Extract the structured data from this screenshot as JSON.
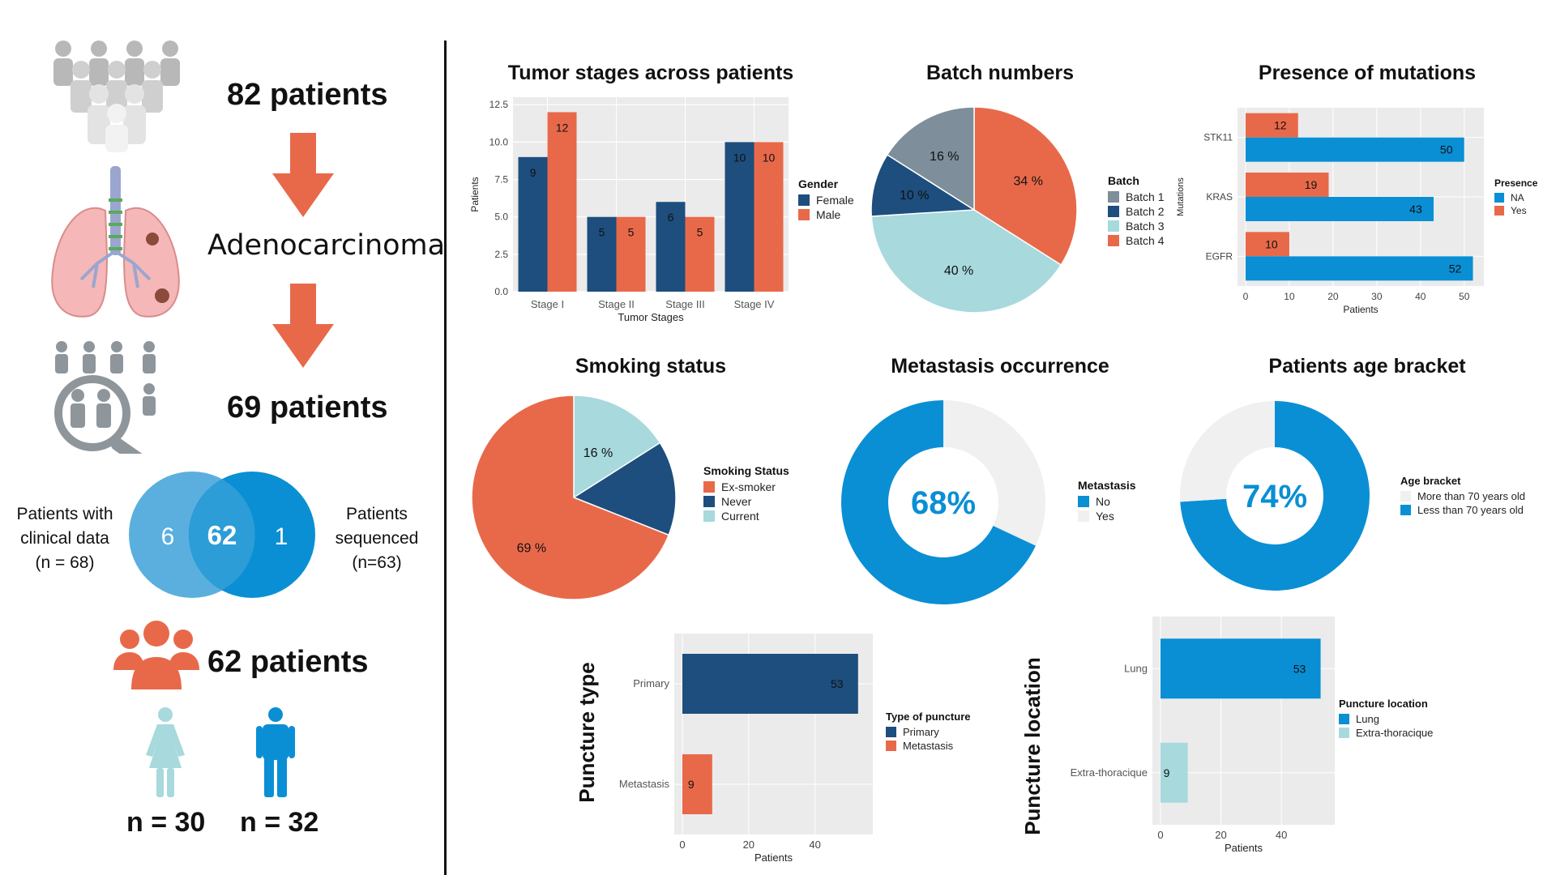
{
  "colors": {
    "orange": "#E8694A",
    "navy": "#1D4E7D",
    "blue": "#0A8FD4",
    "light_blue": "#A7D9DD",
    "grey_batch": "#7E8E9A",
    "panel": "#EBEBEB",
    "grid": "#FFFFFF",
    "yes_light": "#F0F0F0",
    "venn_left": "#5AAFDE",
    "venn_right": "#0A8FD4"
  },
  "left": {
    "n_start": "82 patients",
    "diagnosis": "Adenocarcinoma",
    "n_filtered": "69 patients",
    "venn": {
      "left_label_lines": [
        "Patients with",
        "clinical data",
        "(n = 68)"
      ],
      "right_label_lines": [
        "Patients",
        "sequenced",
        "(n=63)"
      ],
      "left_only": "6",
      "intersection": "62",
      "right_only": "1"
    },
    "n_final": "62 patients",
    "female_n": "n = 30",
    "male_n": "n = 32"
  },
  "chart_data": [
    {
      "id": "tumor-stages",
      "type": "bar",
      "title": "Tumor stages across patients",
      "xlabel": "Tumor Stages",
      "ylabel": "Patients",
      "categories": [
        "Stage I",
        "Stage II",
        "Stage III",
        "Stage IV"
      ],
      "series": [
        {
          "name": "Female",
          "values": [
            9,
            5,
            6,
            10
          ]
        },
        {
          "name": "Male",
          "values": [
            12,
            5,
            5,
            10
          ]
        }
      ],
      "ylim": [
        0,
        12.5
      ],
      "yticks": [
        "0.0",
        "2.5",
        "5.0",
        "7.5",
        "10.0",
        "12.5"
      ],
      "legend_title": "Gender",
      "legend": [
        "Female",
        "Male"
      ]
    },
    {
      "id": "batch-numbers",
      "type": "pie",
      "title": "Batch numbers",
      "legend_title": "Batch",
      "slices": [
        {
          "name": "Batch 4",
          "value": 34,
          "label": "34 %"
        },
        {
          "name": "Batch 3",
          "value": 40,
          "label": "40 %"
        },
        {
          "name": "Batch 2",
          "value": 10,
          "label": "10 %"
        },
        {
          "name": "Batch 1",
          "value": 16,
          "label": "16 %"
        }
      ],
      "legend": [
        "Batch 1",
        "Batch 2",
        "Batch 3",
        "Batch 4"
      ]
    },
    {
      "id": "mutations",
      "type": "bar",
      "orientation": "horizontal",
      "title": "Presence of mutations",
      "xlabel": "Patients",
      "ylabel": "Mutations",
      "categories": [
        "STK11",
        "KRAS",
        "EGFR"
      ],
      "series": [
        {
          "name": "Yes",
          "values": [
            12,
            19,
            10
          ]
        },
        {
          "name": "NA",
          "values": [
            50,
            43,
            52
          ]
        }
      ],
      "xlim": [
        0,
        52
      ],
      "xticks": [
        "0",
        "10",
        "20",
        "30",
        "40",
        "50"
      ],
      "legend_title": "Presence",
      "legend": [
        "NA",
        "Yes"
      ]
    },
    {
      "id": "smoking",
      "type": "pie",
      "title": "Smoking status",
      "legend_title": "Smoking Status",
      "slices": [
        {
          "name": "Current",
          "value": 16,
          "label": "16 %"
        },
        {
          "name": "Never",
          "value": 15,
          "label": "15 %"
        },
        {
          "name": "Ex-smoker",
          "value": 69,
          "label": "69 %"
        }
      ],
      "legend": [
        "Ex-smoker",
        "Never",
        "Current"
      ]
    },
    {
      "id": "metastasis",
      "type": "pie",
      "title": "Metastasis occurrence",
      "center_label": "68%",
      "legend_title": "Metastasis",
      "slices": [
        {
          "name": "Yes",
          "value": 32
        },
        {
          "name": "No",
          "value": 68
        }
      ],
      "legend": [
        "No",
        "Yes"
      ]
    },
    {
      "id": "age",
      "type": "pie",
      "title": "Patients age bracket",
      "center_label": "74%",
      "legend_title": "Age bracket",
      "slices": [
        {
          "name": "Less than 70 years old",
          "value": 74
        },
        {
          "name": "More than 70 years old",
          "value": 26
        }
      ],
      "legend": [
        "More than 70 years old",
        "Less than 70 years old"
      ]
    },
    {
      "id": "puncture-type",
      "type": "bar",
      "orientation": "horizontal",
      "title": "Puncture type",
      "xlabel": "Patients",
      "categories": [
        "Primary",
        "Metastasis"
      ],
      "values": [
        53,
        9
      ],
      "xlim": [
        0,
        55
      ],
      "xticks": [
        "0",
        "20",
        "40"
      ],
      "legend_title": "Type of puncture",
      "legend": [
        "Primary",
        "Metastasis"
      ]
    },
    {
      "id": "puncture-location",
      "type": "bar",
      "orientation": "horizontal",
      "title": "Puncture location",
      "xlabel": "Patients",
      "categories": [
        "Lung",
        "Extra-thoracique"
      ],
      "values": [
        53,
        9
      ],
      "xlim": [
        0,
        55
      ],
      "xticks": [
        "0",
        "20",
        "40"
      ],
      "legend_title": "Puncture location",
      "legend": [
        "Lung",
        "Extra-thoracique"
      ]
    }
  ]
}
